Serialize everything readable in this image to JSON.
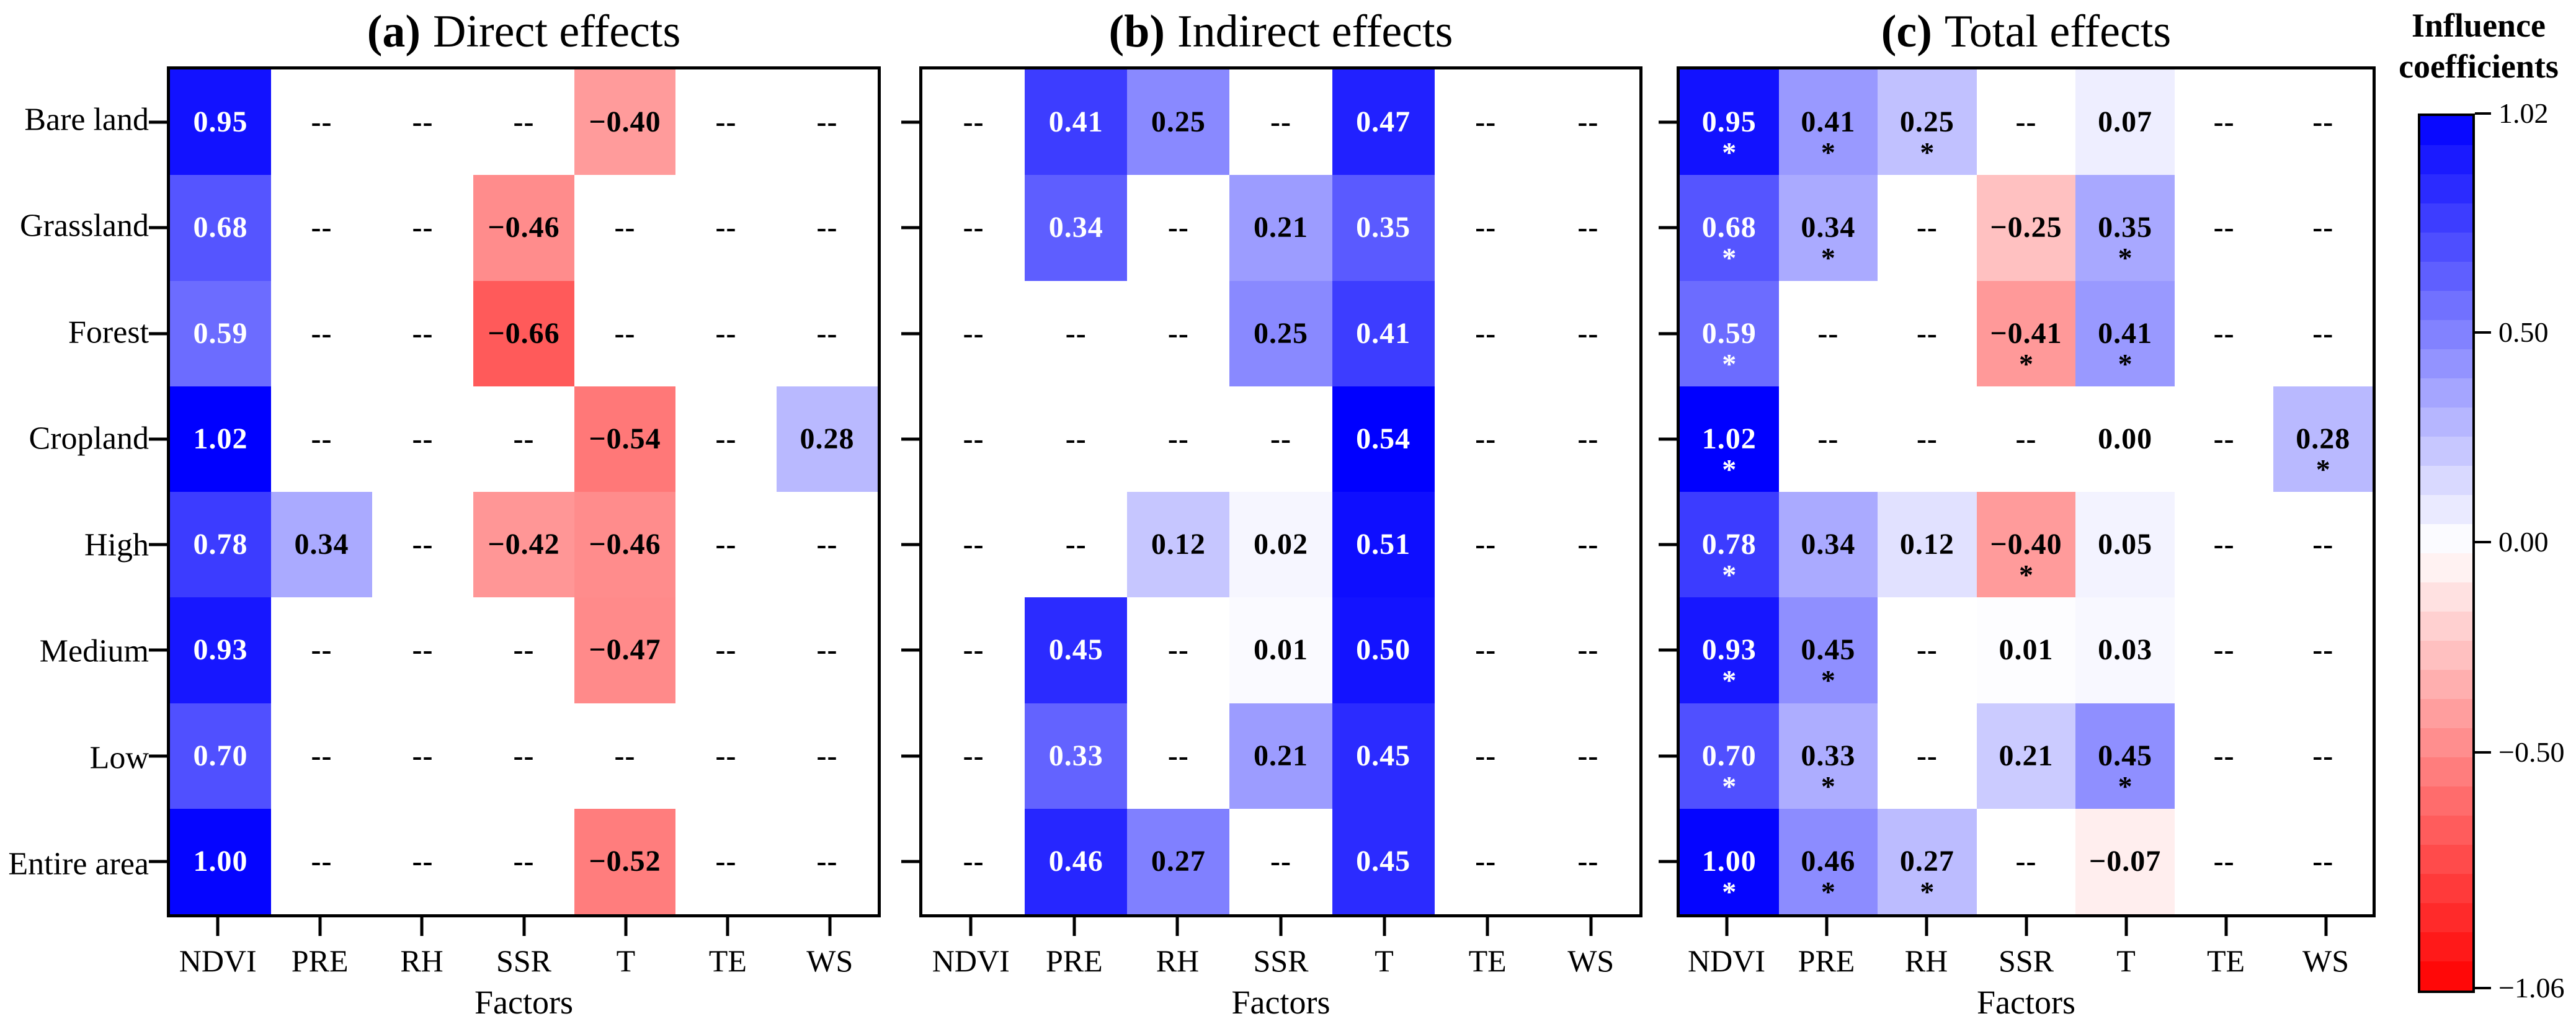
{
  "chart_data": {
    "type": "heatmap",
    "xlabel": "Factors",
    "columns": [
      "NDVI",
      "PRE",
      "RH",
      "SSR",
      "T",
      "TE",
      "WS"
    ],
    "rows": [
      "Bare land",
      "Grassland",
      "Forest",
      "Cropland",
      "High",
      "Medium",
      "Low",
      "Entire area"
    ],
    "missing_marker": "--",
    "significance_marker": "*",
    "colorbar": {
      "title_lines": [
        "Influence",
        "coefficients"
      ],
      "vmin": -1.06,
      "vmax": 1.02,
      "tick_values": [
        1.02,
        0.5,
        0.0,
        -0.5,
        -1.06
      ],
      "tick_labels": [
        "1.02",
        "0.50",
        "0.00",
        "−0.50",
        "−1.06"
      ],
      "steps": 30,
      "color_positive": "#0000ff",
      "color_zero": "#ffffff",
      "color_negative": "#ff0000"
    },
    "panels": [
      {
        "id": "a",
        "tag": "(a)",
        "title": "Direct effects",
        "scale_max": 1.02,
        "values": [
          [
            0.95,
            null,
            null,
            null,
            -0.4,
            null,
            null
          ],
          [
            0.68,
            null,
            null,
            -0.46,
            null,
            null,
            null
          ],
          [
            0.59,
            null,
            null,
            -0.66,
            null,
            null,
            null
          ],
          [
            1.02,
            null,
            null,
            null,
            -0.54,
            null,
            0.28
          ],
          [
            0.78,
            0.34,
            null,
            -0.42,
            -0.46,
            null,
            null
          ],
          [
            0.93,
            null,
            null,
            null,
            -0.47,
            null,
            null
          ],
          [
            0.7,
            null,
            null,
            null,
            null,
            null,
            null
          ],
          [
            1.0,
            null,
            null,
            null,
            -0.52,
            null,
            null
          ]
        ],
        "significant": null
      },
      {
        "id": "b",
        "tag": "(b)",
        "title": "Indirect effects",
        "scale_max": 0.54,
        "values": [
          [
            null,
            0.41,
            0.25,
            null,
            0.47,
            null,
            null
          ],
          [
            null,
            0.34,
            null,
            0.21,
            0.35,
            null,
            null
          ],
          [
            null,
            null,
            null,
            0.25,
            0.41,
            null,
            null
          ],
          [
            null,
            null,
            null,
            null,
            0.54,
            null,
            null
          ],
          [
            null,
            null,
            0.12,
            0.02,
            0.51,
            null,
            null
          ],
          [
            null,
            0.45,
            null,
            0.01,
            0.5,
            null,
            null
          ],
          [
            null,
            0.33,
            null,
            0.21,
            0.45,
            null,
            null
          ],
          [
            null,
            0.46,
            0.27,
            null,
            0.45,
            null,
            null
          ]
        ],
        "significant": null
      },
      {
        "id": "c",
        "tag": "(c)",
        "title": "Total effects",
        "scale_max": 1.02,
        "values": [
          [
            0.95,
            0.41,
            0.25,
            null,
            0.07,
            null,
            null
          ],
          [
            0.68,
            0.34,
            null,
            -0.25,
            0.35,
            null,
            null
          ],
          [
            0.59,
            null,
            null,
            -0.41,
            0.41,
            null,
            null
          ],
          [
            1.02,
            null,
            null,
            null,
            0.0,
            null,
            0.28
          ],
          [
            0.78,
            0.34,
            0.12,
            -0.4,
            0.05,
            null,
            null
          ],
          [
            0.93,
            0.45,
            null,
            0.01,
            0.03,
            null,
            null
          ],
          [
            0.7,
            0.33,
            null,
            0.21,
            0.45,
            null,
            null
          ],
          [
            1.0,
            0.46,
            0.27,
            null,
            -0.07,
            null,
            null
          ]
        ],
        "significant": [
          [
            1,
            1,
            1,
            0,
            0,
            0,
            0
          ],
          [
            1,
            1,
            0,
            0,
            1,
            0,
            0
          ],
          [
            1,
            0,
            0,
            1,
            1,
            0,
            0
          ],
          [
            1,
            0,
            0,
            0,
            0,
            0,
            1
          ],
          [
            1,
            0,
            0,
            1,
            0,
            0,
            0
          ],
          [
            1,
            1,
            0,
            0,
            0,
            0,
            0
          ],
          [
            1,
            1,
            0,
            0,
            1,
            0,
            0
          ],
          [
            1,
            1,
            1,
            0,
            0,
            0,
            0
          ]
        ]
      }
    ]
  }
}
